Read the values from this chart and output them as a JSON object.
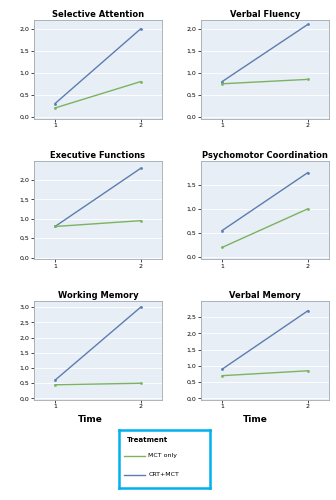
{
  "titles": [
    "Selective Attention",
    "Verbal Fluency",
    "Executive Functions",
    "Psychomotor Coordination",
    "Working Memory",
    "Verbal Memory"
  ],
  "blue_label": "CRT+MCT",
  "green_label": "MCT only",
  "blue_color": "#5B7DB1",
  "green_color": "#7BB360",
  "background_color": "#E8EEF5",
  "spine_color": "#A0A8B0",
  "plots": [
    {
      "blue": [
        0.3,
        2.0
      ],
      "green": [
        0.2,
        0.8
      ],
      "ylim": [
        -0.05,
        2.2
      ],
      "yticks": [
        0.0,
        0.5,
        1.0,
        1.5,
        2.0
      ],
      "ytick_labels": [
        "0,0",
        "0,5",
        "1,0",
        "1,5",
        "2,0"
      ]
    },
    {
      "blue": [
        0.8,
        2.1
      ],
      "green": [
        0.75,
        0.85
      ],
      "ylim": [
        -0.05,
        2.2
      ],
      "yticks": [
        0.0,
        0.5,
        1.0,
        1.5,
        2.0
      ],
      "ytick_labels": [
        "0,0",
        "0,5",
        "1,0",
        "1,5",
        "2,0"
      ]
    },
    {
      "blue": [
        0.8,
        2.3
      ],
      "green": [
        0.8,
        0.95
      ],
      "ylim": [
        -0.05,
        2.5
      ],
      "yticks": [
        0.0,
        0.5,
        1.0,
        1.5,
        2.0
      ],
      "ytick_labels": [
        "0,0",
        "0,5",
        "1,0",
        "1,5",
        "2,0"
      ]
    },
    {
      "blue": [
        0.55,
        1.75
      ],
      "green": [
        0.2,
        1.0
      ],
      "ylim": [
        -0.05,
        2.0
      ],
      "yticks": [
        0.0,
        0.5,
        1.0,
        1.5
      ],
      "ytick_labels": [
        "0,0",
        "0,5",
        "1,0",
        "1,5"
      ]
    },
    {
      "blue": [
        0.6,
        3.0
      ],
      "green": [
        0.45,
        0.5
      ],
      "ylim": [
        -0.05,
        3.2
      ],
      "yticks": [
        0.0,
        0.5,
        1.0,
        1.5,
        2.0,
        2.5,
        3.0
      ],
      "ytick_labels": [
        "0,0",
        "0,5",
        "1,0",
        "1,5",
        "2,0",
        "2,5",
        "3,0"
      ]
    },
    {
      "blue": [
        0.9,
        2.7
      ],
      "green": [
        0.7,
        0.85
      ],
      "ylim": [
        -0.05,
        3.0
      ],
      "yticks": [
        0.0,
        0.5,
        1.0,
        1.5,
        2.0,
        2.5
      ],
      "ytick_labels": [
        "0,0",
        "0,5",
        "1,0",
        "1,5",
        "2,0",
        "2,5"
      ]
    }
  ],
  "xlabel": "Time",
  "xticks": [
    1,
    2
  ],
  "legend_title": "Treatment",
  "legend_box_color": "#00B0F0",
  "fig_bg": "#FFFFFF"
}
